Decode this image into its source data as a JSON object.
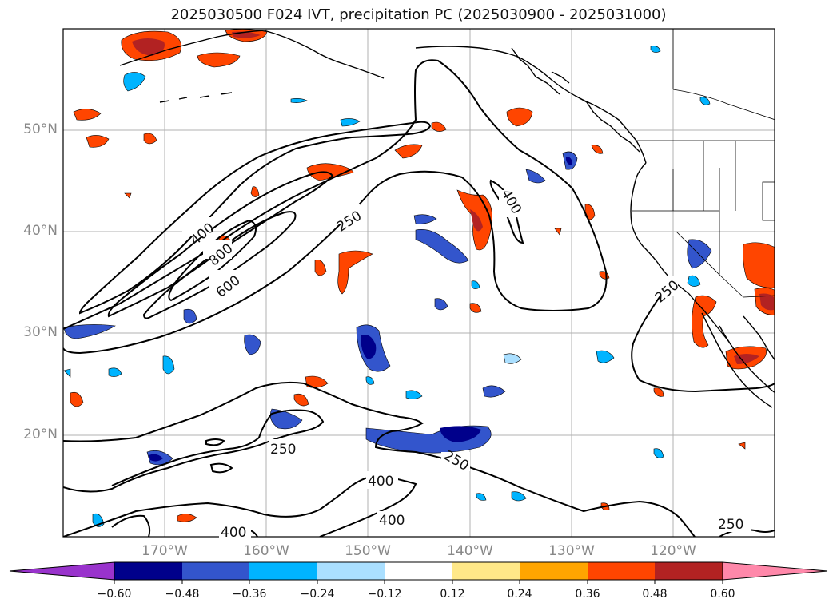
{
  "title": "2025030500 F024 IVT, precipitation PC (2025030900 - 2025031000)",
  "lat_labels": [
    "50°N",
    "40°N",
    "30°N",
    "20°N"
  ],
  "lon_labels": [
    "170°W",
    "160°W",
    "150°W",
    "140°W",
    "130°W",
    "120°W"
  ],
  "contour_labels": [
    "400",
    "800",
    "600",
    "250",
    "400",
    "250",
    "250",
    "250",
    "400",
    "400",
    "400",
    "250"
  ],
  "colorbar": {
    "ticks": [
      "−0.60",
      "−0.48",
      "−0.36",
      "−0.24",
      "−0.12",
      "0.12",
      "0.24",
      "0.36",
      "0.48",
      "0.60"
    ],
    "colors": [
      "#9933cc",
      "#00008b",
      "#3355cc",
      "#00b4ff",
      "#aadfff",
      "#ffffff",
      "#ffe888",
      "#ffa500",
      "#ff4500",
      "#b22222",
      "#ff88aa"
    ]
  },
  "precip_colors": {
    "pos_low": "#ffe888",
    "pos_mid": "#ffa500",
    "pos_high": "#ff4500",
    "pos_max": "#b22222",
    "neg_low": "#aadfff",
    "neg_mid": "#00b4ff",
    "neg_high": "#3355cc",
    "neg_max": "#00008b"
  }
}
